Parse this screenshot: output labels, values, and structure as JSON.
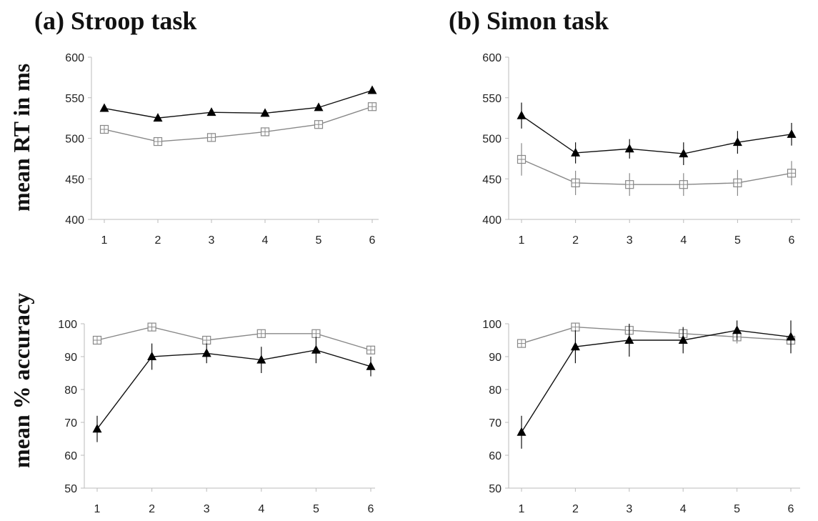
{
  "figure": {
    "panel_a_title": "(a) Stroop task",
    "panel_b_title": "(b) Simon task",
    "ylabel_rt": "mean RT in ms",
    "ylabel_acc": "mean % accuracy"
  },
  "chart_data": [
    {
      "id": "stroop-rt",
      "type": "line",
      "panel": "(a) Stroop task",
      "ylabel": "mean RT in ms",
      "x": [
        1,
        2,
        3,
        4,
        5,
        6
      ],
      "ylim": [
        400,
        600
      ],
      "yticks": [
        400,
        450,
        500,
        550,
        600
      ],
      "grid": false,
      "series": [
        {
          "marker": "triangle-filled",
          "color": "#111111",
          "values": [
            537,
            525,
            532,
            531,
            538,
            559
          ],
          "errors": [
            0,
            0,
            0,
            0,
            0,
            0
          ]
        },
        {
          "marker": "square-open",
          "color": "#888888",
          "values": [
            511,
            496,
            501,
            508,
            517,
            539
          ],
          "errors": [
            0,
            0,
            0,
            0,
            0,
            0
          ]
        }
      ]
    },
    {
      "id": "simon-rt",
      "type": "line",
      "panel": "(b) Simon task",
      "ylabel": "mean RT in ms",
      "x": [
        1,
        2,
        3,
        4,
        5,
        6
      ],
      "ylim": [
        400,
        600
      ],
      "yticks": [
        400,
        450,
        500,
        550,
        600
      ],
      "grid": false,
      "series": [
        {
          "marker": "triangle-filled",
          "color": "#111111",
          "values": [
            528,
            482,
            487,
            481,
            495,
            505
          ],
          "errors": [
            16,
            13,
            12,
            14,
            14,
            14
          ]
        },
        {
          "marker": "square-open",
          "color": "#888888",
          "values": [
            474,
            445,
            443,
            443,
            445,
            457
          ],
          "errors": [
            20,
            15,
            14,
            14,
            16,
            15
          ]
        }
      ]
    },
    {
      "id": "stroop-acc",
      "type": "line",
      "panel": "(a) Stroop task",
      "ylabel": "mean % accuracy",
      "x": [
        1,
        2,
        3,
        4,
        5,
        6
      ],
      "ylim": [
        50,
        100
      ],
      "yticks": [
        50,
        60,
        70,
        80,
        90,
        100
      ],
      "grid": false,
      "series": [
        {
          "marker": "triangle-filled",
          "color": "#111111",
          "values": [
            68,
            90,
            91,
            89,
            92,
            87
          ],
          "errors": [
            4,
            4,
            3,
            4,
            4,
            3
          ]
        },
        {
          "marker": "square-open",
          "color": "#888888",
          "values": [
            95,
            99,
            95,
            97,
            97,
            92
          ],
          "errors": [
            0,
            0,
            0,
            0,
            0,
            0
          ]
        }
      ]
    },
    {
      "id": "simon-acc",
      "type": "line",
      "panel": "(b) Simon task",
      "ylabel": "mean % accuracy",
      "x": [
        1,
        2,
        3,
        4,
        5,
        6
      ],
      "ylim": [
        50,
        100
      ],
      "yticks": [
        50,
        60,
        70,
        80,
        90,
        100
      ],
      "grid": false,
      "series": [
        {
          "marker": "triangle-filled",
          "color": "#111111",
          "values": [
            67,
            93,
            95,
            95,
            98,
            96
          ],
          "errors": [
            5,
            5,
            5,
            4,
            3,
            5
          ]
        },
        {
          "marker": "square-open",
          "color": "#888888",
          "values": [
            94,
            99,
            98,
            97,
            96,
            95
          ],
          "errors": [
            0,
            0,
            0,
            0,
            2,
            2
          ]
        }
      ]
    }
  ]
}
